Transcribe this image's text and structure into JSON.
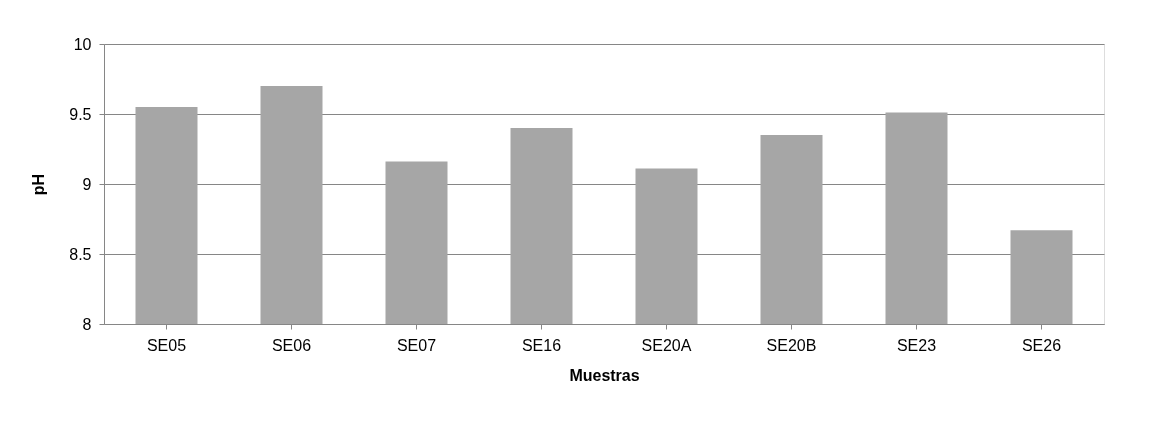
{
  "chart_data": {
    "type": "bar",
    "xlabel": "Muestras",
    "ylabel": "pH",
    "categories": [
      "SE05",
      "SE06",
      "SE07",
      "SE16",
      "SE20A",
      "SE20B",
      "SE23",
      "SE26"
    ],
    "values": [
      9.55,
      9.7,
      9.16,
      9.4,
      9.11,
      9.35,
      9.51,
      8.67
    ],
    "color": "#a6a6a6",
    "ylim": [
      8,
      10
    ],
    "yticks": [
      8,
      8.5,
      9,
      9.5,
      10
    ],
    "grid": "y"
  }
}
